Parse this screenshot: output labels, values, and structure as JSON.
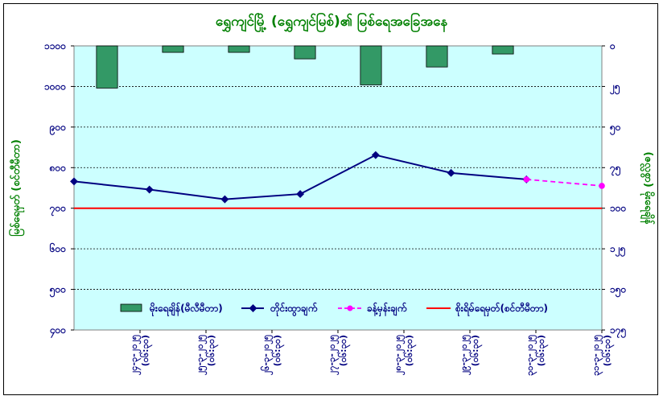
{
  "chart_data": {
    "type": "bar+line",
    "title": "ရွှေကျင်မြို့ (ရွှေကျင်မြစ်)၏ မြစ်ရေအခြေအနေ",
    "ylabel_left": "မြစ်ရေမှတ် (စင်တီမီတာ)",
    "ylabel_right": "(ဇလ္လစွာ) မိုးရေချိန်",
    "left_axis": {
      "ticks": [
        1100,
        1000,
        900,
        800,
        700,
        600,
        500,
        400
      ],
      "tick_labels": [
        "၁၁၀၀",
        "၁၀၀၀",
        "၉၀၀",
        "၈၀၀",
        "၇၀၀",
        "၆၀၀",
        "၅၀၀",
        "၄၀၀"
      ]
    },
    "right_axis": {
      "ticks": [
        0,
        25,
        50,
        75,
        100,
        125,
        150,
        175
      ],
      "tick_labels": [
        "၀",
        "၂၅",
        "၅၀",
        "၇၅",
        "၁၀၀",
        "၁၂၅",
        "၁၅၀",
        "၁၇၅"
      ]
    },
    "categories": [
      "၂၄-၃-၂၀၂၅",
      "၂၅-၃-၂၀၂၅",
      "၂၆-၃-၂၀၂၅",
      "၂၇-၃-၂၀၂၅",
      "၂၈-၃-၂၀၂၅",
      "၂၉-၃-၂၀၂၅",
      "၃၀-၃-၂၀၂၅",
      "၃၁-၃-၂၀၂၅"
    ],
    "category_time": "(၀၆:၃၀)",
    "series": [
      {
        "name": "မိုးရေချိန်(မီလီမီတာ)",
        "type": "bar",
        "axis": "right",
        "color": "#339966",
        "values": [
          26,
          4,
          4,
          8,
          24,
          13,
          5,
          null
        ]
      },
      {
        "name": "တိုင်းထွာချက်",
        "type": "line",
        "axis": "left",
        "color": "#000080",
        "values": [
          766,
          746,
          722,
          735,
          831,
          787,
          771,
          null
        ]
      },
      {
        "name": "ခန့်မှန်းချက်",
        "type": "line-dashed",
        "axis": "left",
        "color": "#ff00ff",
        "values": [
          null,
          null,
          null,
          null,
          null,
          null,
          771,
          755
        ]
      },
      {
        "name": "စိုးရိမ်ရေမှတ်(စင်တီမီတာ)",
        "type": "hline",
        "axis": "left",
        "color": "#ff0000",
        "value": 700
      }
    ],
    "grid": true,
    "legend_position": "bottom"
  }
}
